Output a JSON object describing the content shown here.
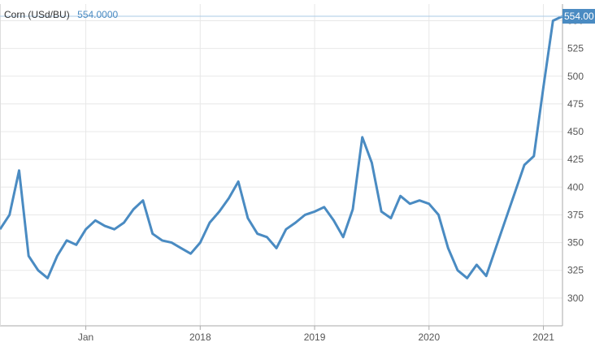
{
  "chart_data": {
    "type": "line",
    "title": "Corn (USd/BU)",
    "current_value": "554.0000",
    "last_value_label": "554.00",
    "xlabel": "",
    "ylabel": "",
    "ylim": [
      275,
      565
    ],
    "xlim": [
      "2016-04",
      "2021-03"
    ],
    "grid": true,
    "y_ticks": [
      "550",
      "525",
      "500",
      "475",
      "450",
      "425",
      "400",
      "375",
      "350",
      "325",
      "300"
    ],
    "x_ticks": [
      {
        "label": "Jan",
        "date": "2017-01"
      },
      {
        "label": "2018",
        "date": "2018-01"
      },
      {
        "label": "2019",
        "date": "2019-01"
      },
      {
        "label": "2020",
        "date": "2020-01"
      },
      {
        "label": "2021",
        "date": "2021-01"
      }
    ],
    "series": [
      {
        "name": "",
        "color": "#4a8bc2",
        "x": [
          "2016-04",
          "2016-05",
          "2016-06",
          "2016-07",
          "2016-08",
          "2016-09",
          "2016-10",
          "2016-11",
          "2016-12",
          "2017-01",
          "2017-02",
          "2017-03",
          "2017-04",
          "2017-05",
          "2017-06",
          "2017-07",
          "2017-08",
          "2017-09",
          "2017-10",
          "2017-11",
          "2017-12",
          "2018-01",
          "2018-02",
          "2018-03",
          "2018-04",
          "2018-05",
          "2018-06",
          "2018-07",
          "2018-08",
          "2018-09",
          "2018-10",
          "2018-11",
          "2018-12",
          "2019-01",
          "2019-02",
          "2019-03",
          "2019-04",
          "2019-05",
          "2019-06",
          "2019-07",
          "2019-08",
          "2019-09",
          "2019-10",
          "2019-11",
          "2019-12",
          "2020-01",
          "2020-02",
          "2020-03",
          "2020-04",
          "2020-05",
          "2020-06",
          "2020-07",
          "2020-08",
          "2020-09",
          "2020-10",
          "2020-11",
          "2020-12",
          "2021-01",
          "2021-02",
          "2021-03"
        ],
        "values": [
          362,
          375,
          415,
          338,
          325,
          318,
          338,
          352,
          348,
          362,
          370,
          365,
          362,
          368,
          380,
          388,
          358,
          352,
          350,
          345,
          340,
          350,
          368,
          378,
          390,
          405,
          372,
          358,
          355,
          345,
          362,
          368,
          375,
          378,
          382,
          370,
          355,
          380,
          445,
          422,
          378,
          372,
          392,
          385,
          388,
          385,
          375,
          345,
          325,
          318,
          330,
          320,
          345,
          370,
          395,
          420,
          428,
          490,
          550,
          554
        ]
      }
    ]
  }
}
